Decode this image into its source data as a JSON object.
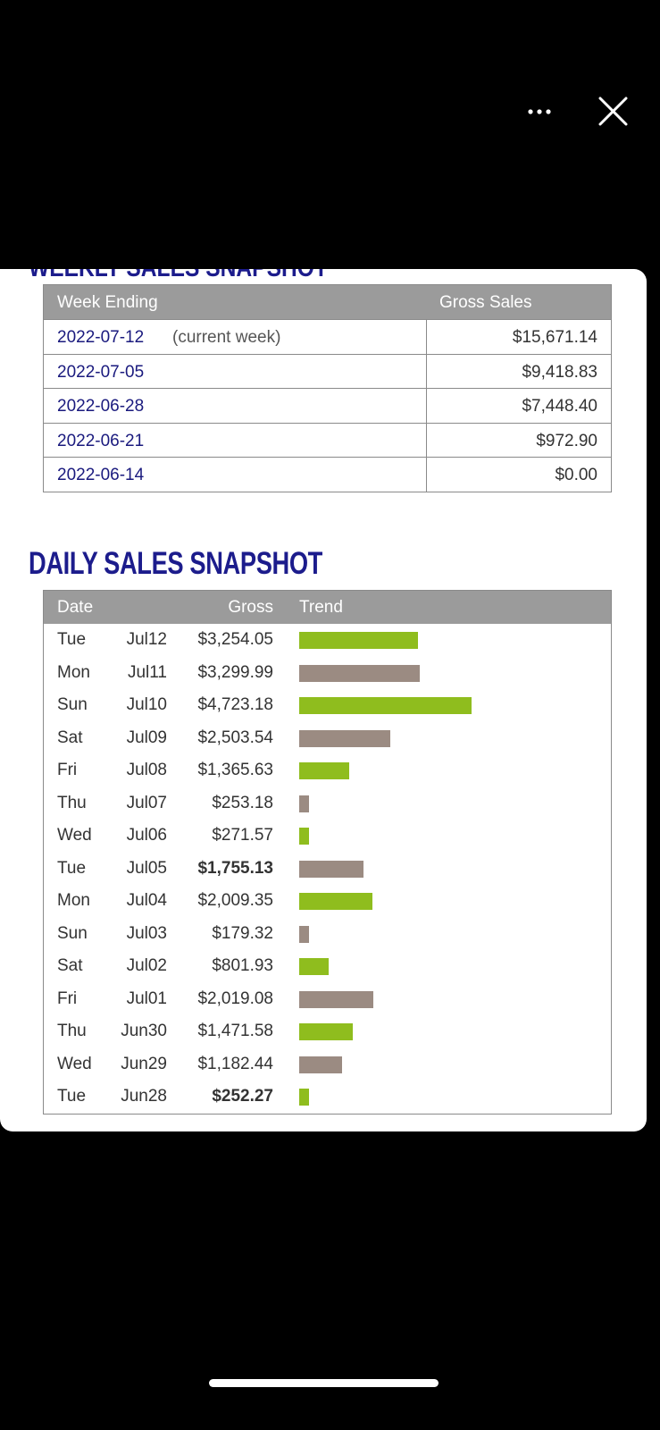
{
  "weekly": {
    "title": "WEEKLY SALES SNAPSHOT",
    "headers": [
      "Week Ending",
      "Gross Sales"
    ],
    "rows": [
      {
        "week": "2022-07-12",
        "note": "(current week)",
        "gross": "$15,671.14"
      },
      {
        "week": "2022-07-05",
        "gross": "$9,418.83"
      },
      {
        "week": "2022-06-28",
        "gross": "$7,448.40"
      },
      {
        "week": "2022-06-21",
        "gross": "$972.90"
      },
      {
        "week": "2022-06-14",
        "gross": "$0.00"
      }
    ]
  },
  "daily": {
    "title": "DAILY SALES SNAPSHOT",
    "headers": [
      "Date",
      "Gross",
      "Trend"
    ],
    "days": [
      "Tue",
      "Mon",
      "Sun",
      "Sat",
      "Fri",
      "Thu",
      "Wed",
      "Tue",
      "Mon",
      "Sun",
      "Sat",
      "Fri",
      "Thu",
      "Wed",
      "Tue"
    ],
    "dates": [
      "Jul12",
      "Jul11",
      "Jul10",
      "Jul09",
      "Jul08",
      "Jul07",
      "Jul06",
      "Jul05",
      "Jul04",
      "Jul03",
      "Jul02",
      "Jul01",
      "Jun30",
      "Jun29",
      "Jun28"
    ],
    "values": [
      3254.05,
      3299.99,
      4723.18,
      2503.54,
      1365.63,
      253.18,
      271.57,
      1755.13,
      2009.35,
      179.32,
      801.93,
      2019.08,
      1471.58,
      1182.44,
      252.27
    ],
    "value_labels": [
      "$3,254.05",
      "$3,299.99",
      "$4,723.18",
      "$2,503.54",
      "$1,365.63",
      "$253.18",
      "$271.57",
      "$1,755.13",
      "$2,009.35",
      "$179.32",
      "$801.93",
      "$2,019.08",
      "$1,471.58",
      "$1,182.44",
      "$252.27"
    ],
    "bold_rows": [
      7,
      14
    ],
    "colors": [
      "#8fbd1e",
      "#9b8b82"
    ]
  }
}
